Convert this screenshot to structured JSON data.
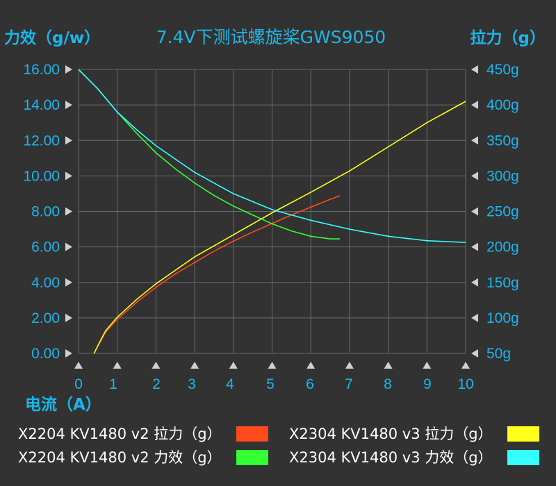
{
  "chart_data": {
    "type": "line",
    "title": "7.4V下测试螺旋桨GWS9050",
    "left_axis_title": "力效（g/w）",
    "right_axis_title": "拉力（g）",
    "xlabel": "电流（A）",
    "x_ticks": [
      "0",
      "1",
      "2",
      "3",
      "4",
      "5",
      "6",
      "7",
      "8",
      "9",
      "10"
    ],
    "y_left_ticks": [
      "0.00",
      "2.00",
      "4.00",
      "6.00",
      "8.00",
      "10.00",
      "12.00",
      "14.00",
      "16.00"
    ],
    "y_right_ticks": [
      "50g",
      "100g",
      "150g",
      "200g",
      "250g",
      "300g",
      "350g",
      "400g",
      "450g"
    ],
    "xlim": [
      0,
      10
    ],
    "ylim_left": [
      0,
      16
    ],
    "ylim_right": [
      50,
      450
    ],
    "grid": true,
    "legend_position": "bottom",
    "series": [
      {
        "name": "X2204 KV1480 v2 拉力（g）",
        "axis": "right",
        "color": "#ff4a1c",
        "x": [
          0.4,
          0.5,
          0.7,
          1,
          1.5,
          2,
          2.5,
          3,
          3.5,
          4,
          4.5,
          5,
          5.5,
          6,
          6.5,
          6.75
        ],
        "y": [
          50,
          60,
          80,
          98,
          122,
          143,
          162,
          178,
          194,
          208,
          221,
          233,
          245,
          256,
          267,
          272
        ]
      },
      {
        "name": "X2304 KV1480 v3 拉力（g）",
        "axis": "right",
        "color": "#ffff1a",
        "x": [
          0.4,
          0.5,
          0.7,
          1,
          1.5,
          2,
          3,
          4,
          5,
          6,
          7,
          8,
          9,
          10
        ],
        "y": [
          50,
          61,
          82,
          101,
          126,
          148,
          186,
          217,
          248,
          277,
          307,
          341,
          375,
          405
        ]
      },
      {
        "name": "X2204 KV1480 v2 力效（g）",
        "axis": "left",
        "color": "#33ff33",
        "x": [
          0,
          0.5,
          1,
          1.5,
          2,
          2.5,
          3,
          3.5,
          4,
          4.5,
          5,
          5.5,
          6,
          6.5,
          6.75
        ],
        "y": [
          16.0,
          14.9,
          13.6,
          12.4,
          11.3,
          10.4,
          9.6,
          8.9,
          8.3,
          7.8,
          7.3,
          6.9,
          6.6,
          6.45,
          6.45
        ]
      },
      {
        "name": "X2304 KV1480 v3 力效（g）",
        "axis": "left",
        "color": "#33ffff",
        "x": [
          0,
          0.5,
          1,
          1.5,
          2,
          3,
          4,
          5,
          6,
          7,
          8,
          9,
          10
        ],
        "y": [
          16.0,
          14.9,
          13.6,
          12.6,
          11.7,
          10.2,
          9.0,
          8.1,
          7.5,
          7.0,
          6.6,
          6.35,
          6.25
        ]
      }
    ]
  }
}
